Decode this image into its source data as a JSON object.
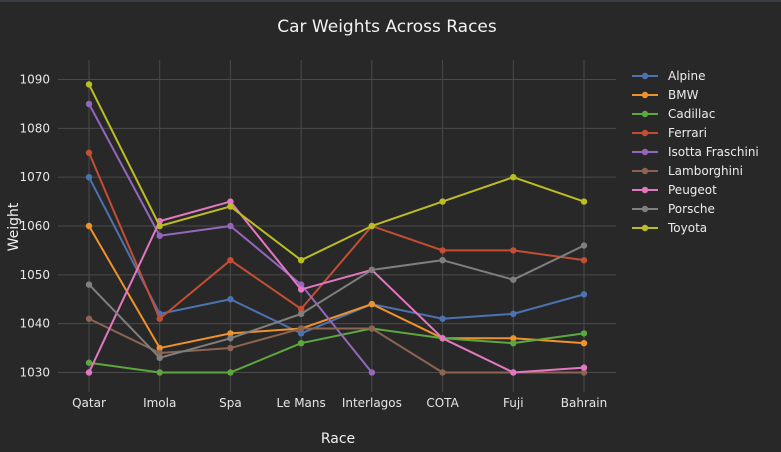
{
  "chart_data": {
    "type": "line",
    "title": "Car Weights Across Races",
    "xlabel": "Race",
    "ylabel": "Weight",
    "categories": [
      "Qatar",
      "Imola",
      "Spa",
      "Le Mans",
      "Interlagos",
      "COTA",
      "Fuji",
      "Bahrain"
    ],
    "ylim": [
      1026,
      1094
    ],
    "yticks": [
      1030,
      1040,
      1050,
      1060,
      1070,
      1080,
      1090
    ],
    "grid": true,
    "legend_position": "right",
    "series": [
      {
        "name": "Alpine",
        "color": "#4c72b0",
        "values": [
          1070,
          1042,
          1045,
          1038,
          1044,
          1041,
          1042,
          1046
        ]
      },
      {
        "name": "BMW",
        "color": "#f0922b",
        "values": [
          1060,
          1035,
          1038,
          1039,
          1044,
          1037,
          1037,
          1036
        ]
      },
      {
        "name": "Cadillac",
        "color": "#5ca83f",
        "values": [
          1032,
          1030,
          1030,
          1036,
          1039,
          1037,
          1036,
          1038
        ]
      },
      {
        "name": "Ferrari",
        "color": "#c44e33",
        "values": [
          1075,
          1041,
          1053,
          1043,
          1060,
          1055,
          1055,
          1053
        ]
      },
      {
        "name": "Isotta Fraschini",
        "color": "#9467bd",
        "values": [
          1085,
          1058,
          1060,
          1048,
          1030,
          null,
          null,
          null
        ]
      },
      {
        "name": "Lamborghini",
        "color": "#8c6552",
        "values": [
          1041,
          1034,
          1035,
          1039,
          1039,
          1030,
          1030,
          1030
        ]
      },
      {
        "name": "Peugeot",
        "color": "#e377c2",
        "values": [
          1030,
          1061,
          1065,
          1047,
          1051,
          1037,
          1030,
          1031
        ]
      },
      {
        "name": "Porsche",
        "color": "#7f7f7f",
        "values": [
          1048,
          1033,
          1037,
          1042,
          1051,
          1053,
          1049,
          1056
        ]
      },
      {
        "name": "Toyota",
        "color": "#bcbd22",
        "values": [
          1089,
          1060,
          1064,
          1053,
          1060,
          1065,
          1070,
          1065
        ]
      }
    ]
  }
}
